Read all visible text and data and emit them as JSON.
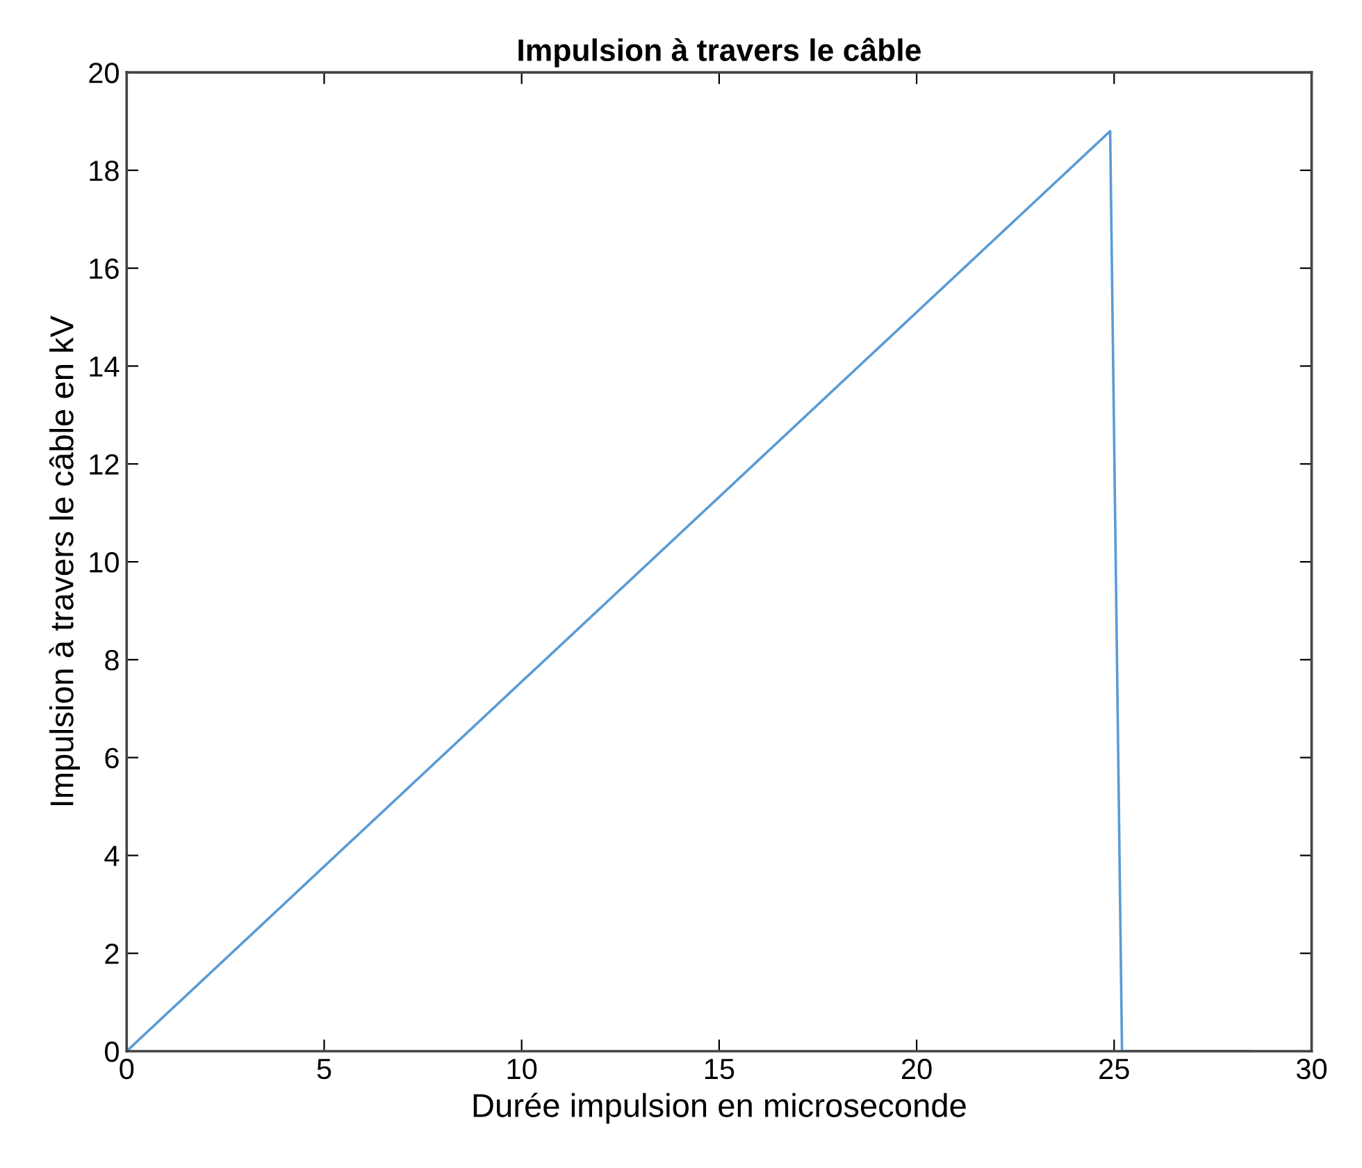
{
  "chart_data": {
    "type": "line",
    "title": "Impulsion à travers le câble",
    "xlabel": "Durée impulsion en microseconde",
    "ylabel": "Impulsion à travers le câble en kV",
    "series": [
      {
        "color": "#5b9bd5",
        "x": [
          0,
          24.9,
          25.2,
          28.5
        ],
        "values": [
          0,
          18.8,
          0,
          0
        ]
      }
    ],
    "xlim": [
      0,
      30
    ],
    "xticks": [
      0,
      5,
      10,
      15,
      20,
      25,
      30
    ],
    "ylim": [
      0,
      20
    ],
    "yticks": [
      0,
      2,
      4,
      6,
      8,
      10,
      12,
      14,
      16,
      18,
      20
    ],
    "grid": false,
    "legend": false
  }
}
